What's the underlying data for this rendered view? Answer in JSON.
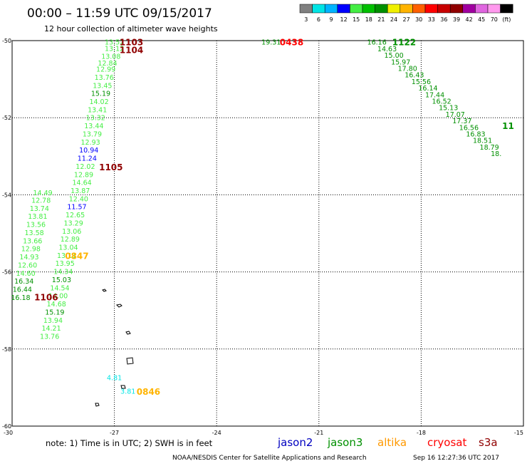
{
  "title": "00:00 – 11:59 UTC 09/15/2017",
  "subtitle": "12 hour collection of altimeter wave heights",
  "legend": {
    "values": [
      "3",
      "6",
      "9",
      "12",
      "15",
      "18",
      "21",
      "24",
      "27",
      "30",
      "33",
      "36",
      "39",
      "42",
      "45",
      "70",
      "(ft)"
    ],
    "colors": [
      "#808080",
      "#00e5e5",
      "#00b4ff",
      "#0000ff",
      "#44ee44",
      "#00c000",
      "#009000",
      "#f0f000",
      "#ffb400",
      "#ff6000",
      "#ff0000",
      "#c80000",
      "#900000",
      "#a000a0",
      "#e066e0",
      "#ff99ee",
      "#000000"
    ]
  },
  "map": {
    "lat_labels": [
      "-50",
      "-52",
      "-54",
      "-56",
      "-58",
      "-60"
    ],
    "lon_labels": [
      "-30",
      "-27",
      "-24",
      "-21",
      "-18",
      "-15"
    ]
  },
  "observations": [
    {
      "text": "13.52",
      "lon": -27.0,
      "lat": -50.05,
      "color": "#44ee44"
    },
    {
      "text": "13.12",
      "lon": -27.0,
      "lat": -50.21,
      "color": "#44ee44"
    },
    {
      "text": "13.08",
      "lon": -27.1,
      "lat": -50.42,
      "color": "#44ee44"
    },
    {
      "text": "12.84",
      "lon": -27.2,
      "lat": -50.59,
      "color": "#44ee44"
    },
    {
      "text": "12.99",
      "lon": -27.25,
      "lat": -50.75,
      "color": "#44ee44"
    },
    {
      "text": "13.76",
      "lon": -27.3,
      "lat": -50.96,
      "color": "#44ee44"
    },
    {
      "text": "13.45",
      "lon": -27.35,
      "lat": -51.17,
      "color": "#44ee44"
    },
    {
      "text": "15.19",
      "lon": -27.4,
      "lat": -51.38,
      "color": "#009000"
    },
    {
      "text": "14.02",
      "lon": -27.45,
      "lat": -51.59,
      "color": "#44ee44"
    },
    {
      "text": "13.41",
      "lon": -27.5,
      "lat": -51.8,
      "color": "#44ee44"
    },
    {
      "text": "13.32",
      "lon": -27.55,
      "lat": -52.01,
      "color": "#44ee44"
    },
    {
      "text": "13.44",
      "lon": -27.6,
      "lat": -52.22,
      "color": "#44ee44"
    },
    {
      "text": "13.79",
      "lon": -27.65,
      "lat": -52.43,
      "color": "#44ee44"
    },
    {
      "text": "12.93",
      "lon": -27.7,
      "lat": -52.64,
      "color": "#44ee44"
    },
    {
      "text": "10.94",
      "lon": -27.75,
      "lat": -52.85,
      "color": "#0000ff"
    },
    {
      "text": "11.24",
      "lon": -27.8,
      "lat": -53.06,
      "color": "#0000ff"
    },
    {
      "text": "12.02",
      "lon": -27.85,
      "lat": -53.27,
      "color": "#44ee44"
    },
    {
      "text": "12.89",
      "lon": -27.9,
      "lat": -53.48,
      "color": "#44ee44"
    },
    {
      "text": "14.64",
      "lon": -27.95,
      "lat": -53.69,
      "color": "#44ee44"
    },
    {
      "text": "13.87",
      "lon": -28.0,
      "lat": -53.9,
      "color": "#44ee44"
    },
    {
      "text": "12.40",
      "lon": -28.05,
      "lat": -54.11,
      "color": "#44ee44"
    },
    {
      "text": "11.57",
      "lon": -28.1,
      "lat": -54.32,
      "color": "#0000ff"
    },
    {
      "text": "12.65",
      "lon": -28.15,
      "lat": -54.53,
      "color": "#44ee44"
    },
    {
      "text": "13.29",
      "lon": -28.2,
      "lat": -54.74,
      "color": "#44ee44"
    },
    {
      "text": "13.06",
      "lon": -28.25,
      "lat": -54.95,
      "color": "#44ee44"
    },
    {
      "text": "12.89",
      "lon": -28.3,
      "lat": -55.16,
      "color": "#44ee44"
    },
    {
      "text": "13.04",
      "lon": -28.35,
      "lat": -55.37,
      "color": "#44ee44"
    },
    {
      "text": "13.11",
      "lon": -28.4,
      "lat": -55.58,
      "color": "#44ee44"
    },
    {
      "text": "13.95",
      "lon": -28.45,
      "lat": -55.79,
      "color": "#44ee44"
    },
    {
      "text": "14.34",
      "lon": -28.5,
      "lat": -56.0,
      "color": "#44ee44"
    },
    {
      "text": "15.03",
      "lon": -28.55,
      "lat": -56.21,
      "color": "#009000"
    },
    {
      "text": "14.54",
      "lon": -28.6,
      "lat": -56.42,
      "color": "#44ee44"
    },
    {
      "text": "14.00",
      "lon": -28.65,
      "lat": -56.63,
      "color": "#44ee44"
    },
    {
      "text": "14.68",
      "lon": -28.7,
      "lat": -56.84,
      "color": "#44ee44"
    },
    {
      "text": "15.19",
      "lon": -28.75,
      "lat": -57.05,
      "color": "#009000"
    },
    {
      "text": "13.94",
      "lon": -28.8,
      "lat": -57.26,
      "color": "#44ee44"
    },
    {
      "text": "14.21",
      "lon": -28.85,
      "lat": -57.47,
      "color": "#44ee44"
    },
    {
      "text": "13.76",
      "lon": -28.9,
      "lat": -57.68,
      "color": "#44ee44"
    },
    {
      "text": "14.49",
      "lon": -29.1,
      "lat": -53.96,
      "color": "#44ee44"
    },
    {
      "text": "12.78",
      "lon": -29.15,
      "lat": -54.15,
      "color": "#44ee44"
    },
    {
      "text": "13.74",
      "lon": -29.2,
      "lat": -54.36,
      "color": "#44ee44"
    },
    {
      "text": "13.81",
      "lon": -29.25,
      "lat": -54.57,
      "color": "#44ee44"
    },
    {
      "text": "13.56",
      "lon": -29.3,
      "lat": -54.78,
      "color": "#44ee44"
    },
    {
      "text": "13.58",
      "lon": -29.35,
      "lat": -54.99,
      "color": "#44ee44"
    },
    {
      "text": "13.66",
      "lon": -29.4,
      "lat": -55.2,
      "color": "#44ee44"
    },
    {
      "text": "12.98",
      "lon": -29.45,
      "lat": -55.41,
      "color": "#44ee44"
    },
    {
      "text": "14.93",
      "lon": -29.5,
      "lat": -55.62,
      "color": "#44ee44"
    },
    {
      "text": "12.60",
      "lon": -29.55,
      "lat": -55.83,
      "color": "#44ee44"
    },
    {
      "text": "14.60",
      "lon": -29.6,
      "lat": -56.04,
      "color": "#44ee44"
    },
    {
      "text": "16.34",
      "lon": -29.65,
      "lat": -56.25,
      "color": "#009000"
    },
    {
      "text": "16.44",
      "lon": -29.7,
      "lat": -56.46,
      "color": "#009000"
    },
    {
      "text": "16.18",
      "lon": -29.75,
      "lat": -56.67,
      "color": "#009000"
    },
    {
      "text": "4.81",
      "lon": -27.0,
      "lat": -58.75,
      "color": "#00e5e5"
    },
    {
      "text": "3.81",
      "lon": -26.6,
      "lat": -59.1,
      "color": "#00e5e5"
    },
    {
      "text": "19.31",
      "lon": -22.4,
      "lat": -50.05,
      "color": "#009000"
    },
    {
      "text": "16.16",
      "lon": -19.3,
      "lat": -50.05,
      "color": "#009000"
    },
    {
      "text": "14.63",
      "lon": -19.0,
      "lat": -50.22,
      "color": "#009000"
    },
    {
      "text": "15.00",
      "lon": -18.8,
      "lat": -50.39,
      "color": "#009000"
    },
    {
      "text": "15.97",
      "lon": -18.6,
      "lat": -50.56,
      "color": "#009000"
    },
    {
      "text": "17.80",
      "lon": -18.4,
      "lat": -50.73,
      "color": "#009000"
    },
    {
      "text": "16.43",
      "lon": -18.2,
      "lat": -50.9,
      "color": "#009000"
    },
    {
      "text": "15.56",
      "lon": -18.0,
      "lat": -51.07,
      "color": "#009000"
    },
    {
      "text": "16.14",
      "lon": -17.8,
      "lat": -51.24,
      "color": "#009000"
    },
    {
      "text": "17.44",
      "lon": -17.6,
      "lat": -51.41,
      "color": "#009000"
    },
    {
      "text": "16.52",
      "lon": -17.4,
      "lat": -51.58,
      "color": "#009000"
    },
    {
      "text": "15.13",
      "lon": -17.2,
      "lat": -51.75,
      "color": "#009000"
    },
    {
      "text": "17.07",
      "lon": -17.0,
      "lat": -51.92,
      "color": "#009000"
    },
    {
      "text": "17.37",
      "lon": -16.8,
      "lat": -52.09,
      "color": "#009000"
    },
    {
      "text": "16.56",
      "lon": -16.6,
      "lat": -52.26,
      "color": "#009000"
    },
    {
      "text": "16.83",
      "lon": -16.4,
      "lat": -52.43,
      "color": "#009000"
    },
    {
      "text": "18.51",
      "lon": -16.2,
      "lat": -52.6,
      "color": "#009000"
    },
    {
      "text": "18.79",
      "lon": -16.0,
      "lat": -52.77,
      "color": "#009000"
    },
    {
      "text": "18.",
      "lon": -15.8,
      "lat": -52.94,
      "color": "#009000"
    }
  ],
  "pass_labels": [
    {
      "text": "1103",
      "lon": -26.5,
      "lat": -50.05,
      "color": "#900000"
    },
    {
      "text": "1104",
      "lon": -26.5,
      "lat": -50.25,
      "color": "#900000"
    },
    {
      "text": "1105",
      "lon": -27.1,
      "lat": -53.29,
      "color": "#900000"
    },
    {
      "text": "1106",
      "lon": -29.0,
      "lat": -56.66,
      "color": "#900000"
    },
    {
      "text": "0847",
      "lon": -28.1,
      "lat": -55.59,
      "color": "#ffb400"
    },
    {
      "text": "0846",
      "lon": -26.0,
      "lat": -59.11,
      "color": "#ffb400"
    },
    {
      "text": "0438",
      "lon": -21.8,
      "lat": -50.05,
      "color": "#ff0000"
    },
    {
      "text": "1122",
      "lon": -18.5,
      "lat": -50.05,
      "color": "#009000"
    },
    {
      "text": "11",
      "lon": -15.45,
      "lat": -52.22,
      "color": "#009000"
    }
  ],
  "note": "note:  1) Time is in UTC;  2) SWH is in feet",
  "satellites": [
    {
      "name": "jason2",
      "color": "#0000c0"
    },
    {
      "name": "jason3",
      "color": "#009000"
    },
    {
      "name": "altika",
      "color": "#ff9900"
    },
    {
      "name": "cryosat",
      "color": "#ff0000"
    },
    {
      "name": "s3a",
      "color": "#900000"
    }
  ],
  "footer_center": "NOAA/NESDIS Center for Satellite Applications and Research",
  "footer_right": "Sep 16 12:27:36 UTC 2017"
}
